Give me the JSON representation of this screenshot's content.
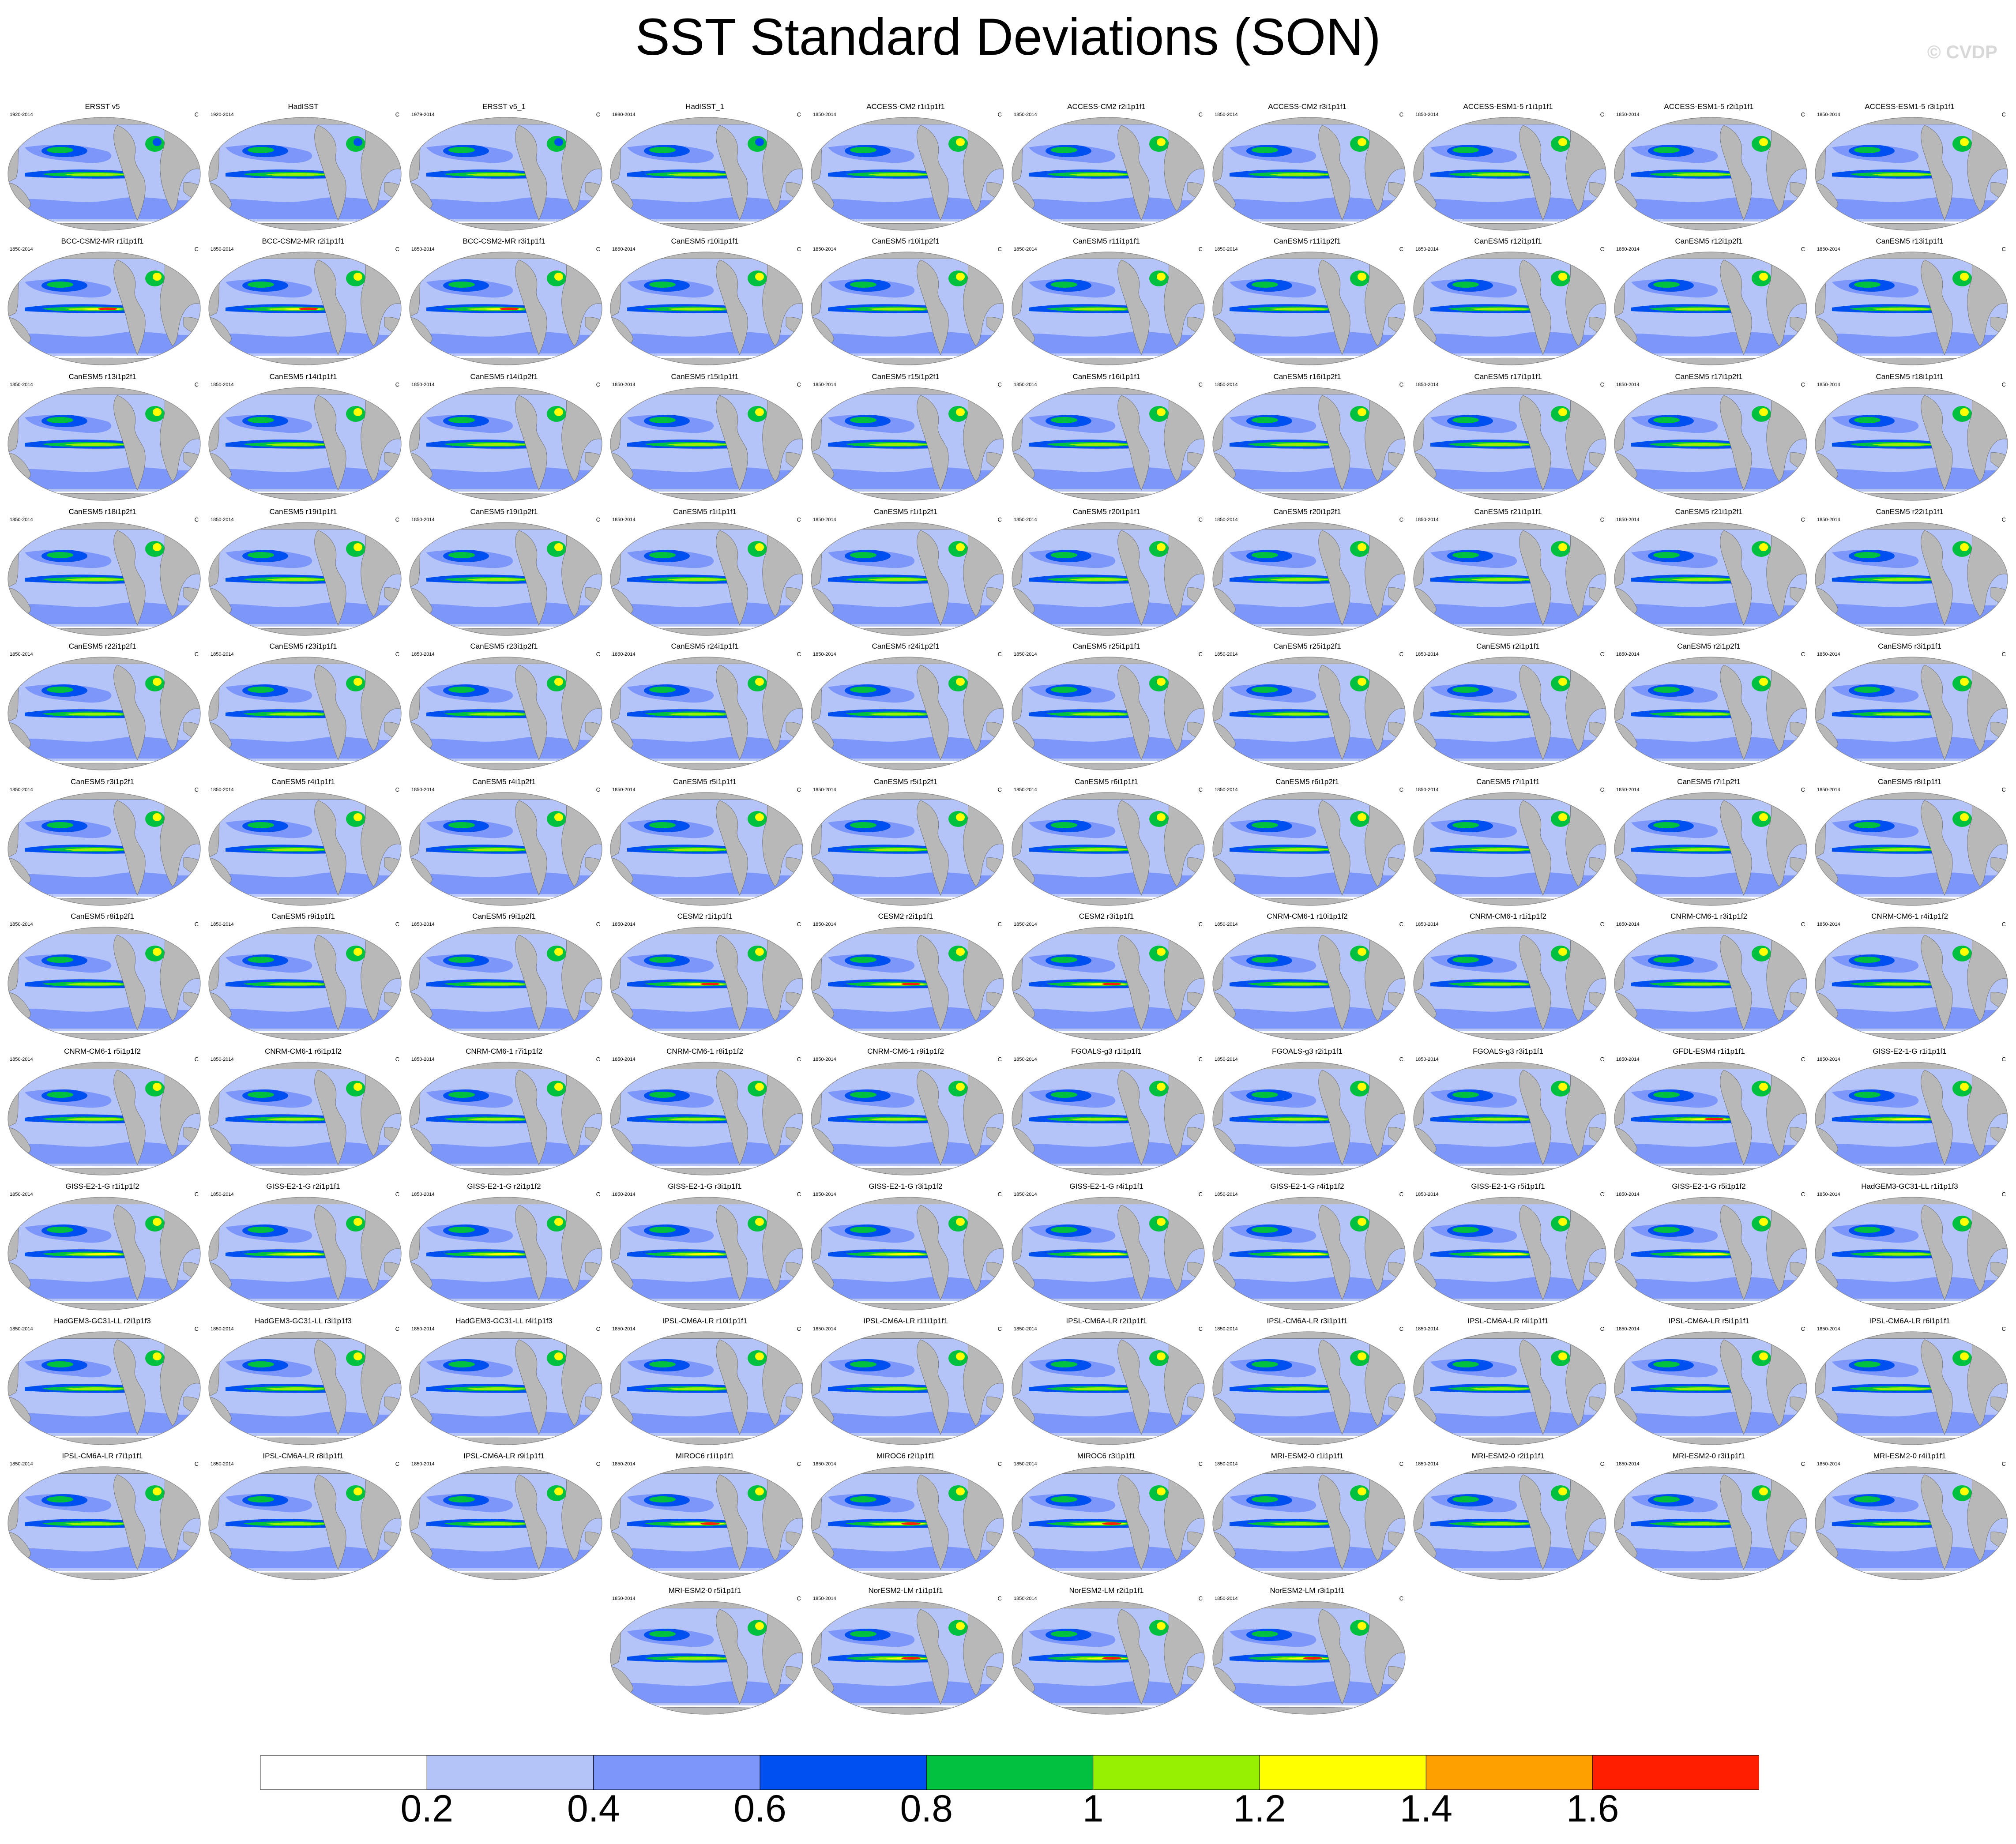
{
  "title": "SST Standard Deviations (SON)",
  "copyright": "© CVDP",
  "unit": "C",
  "panels": [
    {
      "name": "ERSST v5",
      "years": "1920-2014"
    },
    {
      "name": "HadISST",
      "years": "1920-2014"
    },
    {
      "name": "ERSST v5_1",
      "years": "1979-2014"
    },
    {
      "name": "HadISST_1",
      "years": "1980-2014"
    },
    {
      "name": "ACCESS-CM2 r1i1p1f1",
      "years": "1850-2014"
    },
    {
      "name": "ACCESS-CM2 r2i1p1f1",
      "years": "1850-2014"
    },
    {
      "name": "ACCESS-CM2 r3i1p1f1",
      "years": "1850-2014"
    },
    {
      "name": "ACCESS-ESM1-5 r1i1p1f1",
      "years": "1850-2014"
    },
    {
      "name": "ACCESS-ESM1-5 r2i1p1f1",
      "years": "1850-2014"
    },
    {
      "name": "ACCESS-ESM1-5 r3i1p1f1",
      "years": "1850-2014"
    },
    {
      "name": "BCC-CSM2-MR r1i1p1f1",
      "years": "1850-2014"
    },
    {
      "name": "BCC-CSM2-MR r2i1p1f1",
      "years": "1850-2014"
    },
    {
      "name": "BCC-CSM2-MR r3i1p1f1",
      "years": "1850-2014"
    },
    {
      "name": "CanESM5 r10i1p1f1",
      "years": "1850-2014"
    },
    {
      "name": "CanESM5 r10i1p2f1",
      "years": "1850-2014"
    },
    {
      "name": "CanESM5 r11i1p1f1",
      "years": "1850-2014"
    },
    {
      "name": "CanESM5 r11i1p2f1",
      "years": "1850-2014"
    },
    {
      "name": "CanESM5 r12i1p1f1",
      "years": "1850-2014"
    },
    {
      "name": "CanESM5 r12i1p2f1",
      "years": "1850-2014"
    },
    {
      "name": "CanESM5 r13i1p1f1",
      "years": "1850-2014"
    },
    {
      "name": "CanESM5 r13i1p2f1",
      "years": "1850-2014"
    },
    {
      "name": "CanESM5 r14i1p1f1",
      "years": "1850-2014"
    },
    {
      "name": "CanESM5 r14i1p2f1",
      "years": "1850-2014"
    },
    {
      "name": "CanESM5 r15i1p1f1",
      "years": "1850-2014"
    },
    {
      "name": "CanESM5 r15i1p2f1",
      "years": "1850-2014"
    },
    {
      "name": "CanESM5 r16i1p1f1",
      "years": "1850-2014"
    },
    {
      "name": "CanESM5 r16i1p2f1",
      "years": "1850-2014"
    },
    {
      "name": "CanESM5 r17i1p1f1",
      "years": "1850-2014"
    },
    {
      "name": "CanESM5 r17i1p2f1",
      "years": "1850-2014"
    },
    {
      "name": "CanESM5 r18i1p1f1",
      "years": "1850-2014"
    },
    {
      "name": "CanESM5 r18i1p2f1",
      "years": "1850-2014"
    },
    {
      "name": "CanESM5 r19i1p1f1",
      "years": "1850-2014"
    },
    {
      "name": "CanESM5 r19i1p2f1",
      "years": "1850-2014"
    },
    {
      "name": "CanESM5 r1i1p1f1",
      "years": "1850-2014"
    },
    {
      "name": "CanESM5 r1i1p2f1",
      "years": "1850-2014"
    },
    {
      "name": "CanESM5 r20i1p1f1",
      "years": "1850-2014"
    },
    {
      "name": "CanESM5 r20i1p2f1",
      "years": "1850-2014"
    },
    {
      "name": "CanESM5 r21i1p1f1",
      "years": "1850-2014"
    },
    {
      "name": "CanESM5 r21i1p2f1",
      "years": "1850-2014"
    },
    {
      "name": "CanESM5 r22i1p1f1",
      "years": "1850-2014"
    },
    {
      "name": "CanESM5 r22i1p2f1",
      "years": "1850-2014"
    },
    {
      "name": "CanESM5 r23i1p1f1",
      "years": "1850-2014"
    },
    {
      "name": "CanESM5 r23i1p2f1",
      "years": "1850-2014"
    },
    {
      "name": "CanESM5 r24i1p1f1",
      "years": "1850-2014"
    },
    {
      "name": "CanESM5 r24i1p2f1",
      "years": "1850-2014"
    },
    {
      "name": "CanESM5 r25i1p1f1",
      "years": "1850-2014"
    },
    {
      "name": "CanESM5 r25i1p2f1",
      "years": "1850-2014"
    },
    {
      "name": "CanESM5 r2i1p1f1",
      "years": "1850-2014"
    },
    {
      "name": "CanESM5 r2i1p2f1",
      "years": "1850-2014"
    },
    {
      "name": "CanESM5 r3i1p1f1",
      "years": "1850-2014"
    },
    {
      "name": "CanESM5 r3i1p2f1",
      "years": "1850-2014"
    },
    {
      "name": "CanESM5 r4i1p1f1",
      "years": "1850-2014"
    },
    {
      "name": "CanESM5 r4i1p2f1",
      "years": "1850-2014"
    },
    {
      "name": "CanESM5 r5i1p1f1",
      "years": "1850-2014"
    },
    {
      "name": "CanESM5 r5i1p2f1",
      "years": "1850-2014"
    },
    {
      "name": "CanESM5 r6i1p1f1",
      "years": "1850-2014"
    },
    {
      "name": "CanESM5 r6i1p2f1",
      "years": "1850-2014"
    },
    {
      "name": "CanESM5 r7i1p1f1",
      "years": "1850-2014"
    },
    {
      "name": "CanESM5 r7i1p2f1",
      "years": "1850-2014"
    },
    {
      "name": "CanESM5 r8i1p1f1",
      "years": "1850-2014"
    },
    {
      "name": "CanESM5 r8i1p2f1",
      "years": "1850-2014"
    },
    {
      "name": "CanESM5 r9i1p1f1",
      "years": "1850-2014"
    },
    {
      "name": "CanESM5 r9i1p2f1",
      "years": "1850-2014"
    },
    {
      "name": "CESM2 r1i1p1f1",
      "years": "1850-2014"
    },
    {
      "name": "CESM2 r2i1p1f1",
      "years": "1850-2014"
    },
    {
      "name": "CESM2 r3i1p1f1",
      "years": "1850-2014"
    },
    {
      "name": "CNRM-CM6-1 r10i1p1f2",
      "years": "1850-2014"
    },
    {
      "name": "CNRM-CM6-1 r1i1p1f2",
      "years": "1850-2014"
    },
    {
      "name": "CNRM-CM6-1 r3i1p1f2",
      "years": "1850-2014"
    },
    {
      "name": "CNRM-CM6-1 r4i1p1f2",
      "years": "1850-2014"
    },
    {
      "name": "CNRM-CM6-1 r5i1p1f2",
      "years": "1850-2014"
    },
    {
      "name": "CNRM-CM6-1 r6i1p1f2",
      "years": "1850-2014"
    },
    {
      "name": "CNRM-CM6-1 r7i1p1f2",
      "years": "1850-2014"
    },
    {
      "name": "CNRM-CM6-1 r8i1p1f2",
      "years": "1850-2014"
    },
    {
      "name": "CNRM-CM6-1 r9i1p1f2",
      "years": "1850-2014"
    },
    {
      "name": "FGOALS-g3 r1i1p1f1",
      "years": "1850-2014"
    },
    {
      "name": "FGOALS-g3 r2i1p1f1",
      "years": "1850-2014"
    },
    {
      "name": "FGOALS-g3 r3i1p1f1",
      "years": "1850-2014"
    },
    {
      "name": "GFDL-ESM4 r1i1p1f1",
      "years": "1850-2014"
    },
    {
      "name": "GISS-E2-1-G r1i1p1f1",
      "years": "1850-2014"
    },
    {
      "name": "GISS-E2-1-G r1i1p1f2",
      "years": "1850-2014"
    },
    {
      "name": "GISS-E2-1-G r2i1p1f1",
      "years": "1850-2014"
    },
    {
      "name": "GISS-E2-1-G r2i1p1f2",
      "years": "1850-2014"
    },
    {
      "name": "GISS-E2-1-G r3i1p1f1",
      "years": "1850-2014"
    },
    {
      "name": "GISS-E2-1-G r3i1p1f2",
      "years": "1850-2014"
    },
    {
      "name": "GISS-E2-1-G r4i1p1f1",
      "years": "1850-2014"
    },
    {
      "name": "GISS-E2-1-G r4i1p1f2",
      "years": "1850-2014"
    },
    {
      "name": "GISS-E2-1-G r5i1p1f1",
      "years": "1850-2014"
    },
    {
      "name": "GISS-E2-1-G r5i1p1f2",
      "years": "1850-2014"
    },
    {
      "name": "HadGEM3-GC31-LL r1i1p1f3",
      "years": "1850-2014"
    },
    {
      "name": "HadGEM3-GC31-LL r2i1p1f3",
      "years": "1850-2014"
    },
    {
      "name": "HadGEM3-GC31-LL r3i1p1f3",
      "years": "1850-2014"
    },
    {
      "name": "HadGEM3-GC31-LL r4i1p1f3",
      "years": "1850-2014"
    },
    {
      "name": "IPSL-CM6A-LR r10i1p1f1",
      "years": "1850-2014"
    },
    {
      "name": "IPSL-CM6A-LR r11i1p1f1",
      "years": "1850-2014"
    },
    {
      "name": "IPSL-CM6A-LR r2i1p1f1",
      "years": "1850-2014"
    },
    {
      "name": "IPSL-CM6A-LR r3i1p1f1",
      "years": "1850-2014"
    },
    {
      "name": "IPSL-CM6A-LR r4i1p1f1",
      "years": "1850-2014"
    },
    {
      "name": "IPSL-CM6A-LR r5i1p1f1",
      "years": "1850-2014"
    },
    {
      "name": "IPSL-CM6A-LR r6i1p1f1",
      "years": "1850-2014"
    },
    {
      "name": "IPSL-CM6A-LR r7i1p1f1",
      "years": "1850-2014"
    },
    {
      "name": "IPSL-CM6A-LR r8i1p1f1",
      "years": "1850-2014"
    },
    {
      "name": "IPSL-CM6A-LR r9i1p1f1",
      "years": "1850-2014"
    },
    {
      "name": "MIROC6 r1i1p1f1",
      "years": "1850-2014"
    },
    {
      "name": "MIROC6 r2i1p1f1",
      "years": "1850-2014"
    },
    {
      "name": "MIROC6 r3i1p1f1",
      "years": "1850-2014"
    },
    {
      "name": "MRI-ESM2-0 r1i1p1f1",
      "years": "1850-2014"
    },
    {
      "name": "MRI-ESM2-0 r2i1p1f1",
      "years": "1850-2014"
    },
    {
      "name": "MRI-ESM2-0 r3i1p1f1",
      "years": "1850-2014"
    },
    {
      "name": "MRI-ESM2-0 r4i1p1f1",
      "years": "1850-2014"
    },
    {
      "name": "MRI-ESM2-0 r5i1p1f1",
      "years": "1850-2014"
    },
    {
      "name": "NorESM2-LM r1i1p1f1",
      "years": "1850-2014"
    },
    {
      "name": "NorESM2-LM r2i1p1f1",
      "years": "1850-2014"
    },
    {
      "name": "NorESM2-LM r3i1p1f1",
      "years": "1850-2014"
    }
  ],
  "chart_data": {
    "type": "heatmap",
    "title": "SST Standard Deviations (SON)",
    "units": "C",
    "projection": "global map panels",
    "colorbar": {
      "ticks": [
        "0.2",
        "0.4",
        "0.6",
        "0.8",
        "1",
        "1.2",
        "1.4",
        "1.6"
      ],
      "tick_values": [
        0.2,
        0.4,
        0.6,
        0.8,
        1.0,
        1.2,
        1.4,
        1.6
      ],
      "range": [
        0.0,
        1.8
      ],
      "colors": [
        "#ffffff",
        "#b4c4f8",
        "#7d96fa",
        "#0050f0",
        "#00c040",
        "#96f000",
        "#ffff00",
        "#ffa000",
        "#ff1e00"
      ]
    }
  }
}
